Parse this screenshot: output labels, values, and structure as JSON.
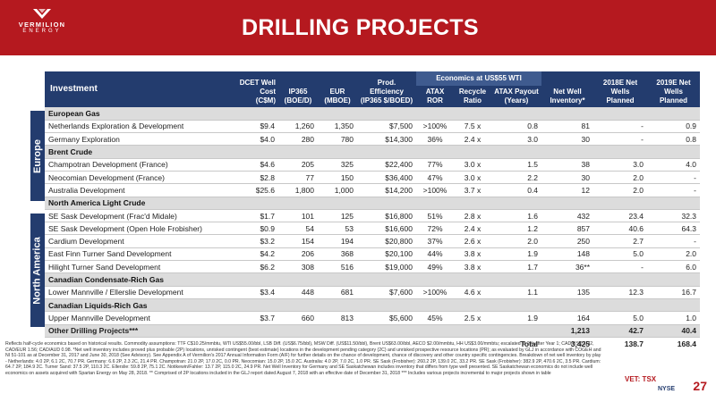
{
  "brand": {
    "name": "VERMILION",
    "sub": "ENERGY"
  },
  "title": "DRILLING PROJECTS",
  "table": {
    "group_header": "Economics at US$55 WTI",
    "headers": {
      "investment": "Investment",
      "dcet": "DCET Well Cost (C$M)",
      "ip365": "IP365 (BOE/D)",
      "eur": "EUR (MBOE)",
      "eff": "Prod. Efficiency (IP365 $/BOED)",
      "atax": "ATAX ROR",
      "recycle": "Recycle Ratio",
      "payout": "ATAX Payout (Years)",
      "inventory": "Net Well Inventory*",
      "w2018": "2018E Net Wells Planned",
      "w2019": "2019E Net Wells Planned"
    },
    "regions": [
      "Europe",
      "North America"
    ],
    "rows": [
      {
        "type": "cat",
        "name": "European Gas"
      },
      {
        "type": "row",
        "name": "Netherlands Exploration & Development",
        "v": [
          "$9.4",
          "1,260",
          "1,350",
          "$7,500",
          ">100%",
          "7.5 x",
          "0.8",
          "81",
          "-",
          "0.9"
        ]
      },
      {
        "type": "row",
        "name": "Germany Exploration",
        "v": [
          "$4.0",
          "280",
          "780",
          "$14,300",
          "36%",
          "2.4 x",
          "3.0",
          "30",
          "-",
          "0.8"
        ]
      },
      {
        "type": "cat",
        "name": "Brent Crude"
      },
      {
        "type": "row",
        "name": "Champotran Development (France)",
        "v": [
          "$4.6",
          "205",
          "325",
          "$22,400",
          "77%",
          "3.0 x",
          "1.5",
          "38",
          "3.0",
          "4.0"
        ]
      },
      {
        "type": "row",
        "name": "Neocomian Development (France)",
        "v": [
          "$2.8",
          "77",
          "150",
          "$36,400",
          "47%",
          "3.0 x",
          "2.2",
          "30",
          "2.0",
          "-"
        ]
      },
      {
        "type": "row",
        "name": "Australia Development",
        "v": [
          "$25.6",
          "1,800",
          "1,000",
          "$14,200",
          ">100%",
          "3.7 x",
          "0.4",
          "12",
          "2.0",
          "-"
        ]
      },
      {
        "type": "cat",
        "name": "North America Light Crude"
      },
      {
        "type": "row",
        "name": "SE Sask Development (Frac'd Midale)",
        "v": [
          "$1.7",
          "101",
          "125",
          "$16,800",
          "51%",
          "2.8 x",
          "1.6",
          "432",
          "23.4",
          "32.3"
        ]
      },
      {
        "type": "row",
        "name": "SE Sask Development (Open Hole Frobisher)",
        "v": [
          "$0.9",
          "54",
          "53",
          "$16,600",
          "72%",
          "2.4 x",
          "1.2",
          "857",
          "40.6",
          "64.3"
        ]
      },
      {
        "type": "row",
        "name": "Cardium Development",
        "v": [
          "$3.2",
          "154",
          "194",
          "$20,800",
          "37%",
          "2.6 x",
          "2.0",
          "250",
          "2.7",
          "-"
        ]
      },
      {
        "type": "row",
        "name": "East Finn Turner Sand Development",
        "v": [
          "$4.2",
          "206",
          "368",
          "$20,100",
          "44%",
          "3.8 x",
          "1.9",
          "148",
          "5.0",
          "2.0"
        ]
      },
      {
        "type": "row",
        "name": "Hilight Turner Sand Development",
        "v": [
          "$6.2",
          "308",
          "516",
          "$19,000",
          "49%",
          "3.8 x",
          "1.7",
          "36**",
          "-",
          "6.0"
        ]
      },
      {
        "type": "cat",
        "name": "Canadian Condensate-Rich Gas"
      },
      {
        "type": "row",
        "name": "Lower Mannville / Ellerslie Development",
        "v": [
          "$3.4",
          "448",
          "681",
          "$7,600",
          ">100%",
          "4.6 x",
          "1.1",
          "135",
          "12.3",
          "16.7"
        ]
      },
      {
        "type": "cat",
        "name": "Canadian Liquids-Rich Gas"
      },
      {
        "type": "row",
        "name": "Upper Mannville Development",
        "v": [
          "$3.7",
          "660",
          "813",
          "$5,600",
          "45%",
          "2.5 x",
          "1.9",
          "164",
          "5.0",
          "1.0"
        ]
      },
      {
        "type": "other",
        "name": "Other Drilling Projects***",
        "v": [
          "",
          "",
          "",
          "",
          "",
          "",
          "",
          "1,213",
          "42.7",
          "40.4"
        ]
      }
    ],
    "total": {
      "label": "Total",
      "v": [
        "3,425",
        "138.7",
        "168.4"
      ]
    }
  },
  "footnote": "Reflects half-cycle economics based on historical results. Commodity assumptions: TTF C$10.25/mmbtu, WTI US$55.00/bbl, LSB Diff. (US$6.75/bbl), MSW Diff. (US$11.50/bbl), Brent US$63.00/bbl, AECO $2.00/mmbtu, HH US$3.00/mmbtu; escalated at 2% after Year 1; CAD/USD 1.32, CAD/EUR 1.56; CAD/AUD 0.98. *Net well inventory includes proved plus probable (2P) locations, unrisked contingent (best estimate) locations in the development pending category (2C) and unrisked prospective resource locations (PR); as evaluated by GLJ in accordance with COGEH and NI 51-101 as at December 31, 2017 and June 30, 2018 (See Advisory). See Appendix A of Vermilion's 2017 Annual Information Form (AIF) for further details on the chance of development, chance of discovery and other country specific contingencies. Breakdown of net well inventory by play - Netherlands: 4.0 2P, 6.1 2C, 70.7 PR. Germany: 6.6 2P, 2.3 2C, 21.4 PR. Champotran: 21.0 2P, 17.0 2C, 0.0 PR. Neocomian: 15.0 2P, 15.0 2C. Australia: 4.0 2P, 7.0 2C, 1.0 PR. SE Sask (Frobisher): 260.2 2P, 139.0 2C, 33.2 PR. SE Sask (Frobisher): 382.9 2P, 470.6 2C, 3.5 PR. Cardium: 64.7 2P, 184.9 2C. Turner Sand: 37.5 2P, 110.3 2C. Ellerslie: 59.8 2P, 75.1 2C. Notikewin/Fahler: 13.7 2P, 115.0 2C, 24.9 PR. Net Well Inventory for Germany and SE Saskatchewan includes inventory that differs from type well presented. SE Saskatchewan economics do not include well economics on assets acquired with Spartan Energy on May 28, 2018. ** Comprised of 2P locations included in the GLJ report dated August 7, 2018 with an effective date of December 31, 2018 *** Includes various projects incremental to major projects shown in table",
  "exchanges": {
    "tsx": "VET: TSX",
    "nyse": "NYSE"
  },
  "page_number": "27",
  "colors": {
    "brand_red": "#b5191f",
    "navy": "#233c6e",
    "group_blue": "#3f5b8f",
    "category_grey": "#dcdcdc"
  }
}
